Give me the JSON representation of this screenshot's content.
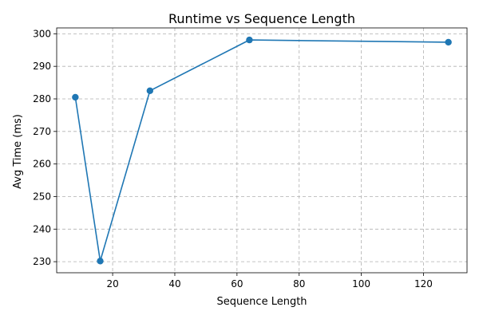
{
  "chart_data": {
    "type": "line",
    "title": "Runtime vs Sequence Length",
    "xlabel": "Sequence Length",
    "ylabel": "Avg Time (ms)",
    "xlim": [
      2,
      134
    ],
    "ylim": [
      226.6,
      301.8
    ],
    "xticks": [
      20,
      40,
      60,
      80,
      100,
      120
    ],
    "yticks": [
      230,
      240,
      250,
      260,
      270,
      280,
      290,
      300
    ],
    "grid": true,
    "series": [
      {
        "color": "#1f77b4",
        "marker": "circle",
        "x": [
          8,
          16,
          32,
          64,
          128
        ],
        "y": [
          280.5,
          230.2,
          282.5,
          298.1,
          297.4
        ]
      }
    ]
  }
}
